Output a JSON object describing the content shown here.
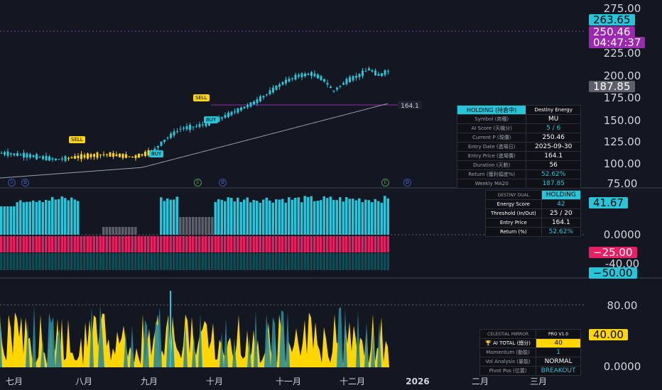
{
  "price_axis": {
    "ticks": [
      "275.00",
      "225.00",
      "200.00",
      "175.00",
      "150.00",
      "125.00",
      "100.00",
      "75.00"
    ]
  },
  "price_tags": {
    "high": "263.65",
    "current": "250.46",
    "countdown": "04:47:37",
    "ma": "187.85",
    "entry_line": "164.1"
  },
  "osc_axis": {
    "ticks": [
      "0.0000",
      "-40.00"
    ]
  },
  "osc_tags": {
    "energy": "41.67",
    "neg25": "−25.00",
    "neg50": "−50.00"
  },
  "bottom_axis": {
    "ticks": [
      "80.00",
      "0.0000"
    ]
  },
  "bottom_tags": {
    "ai": "40.00"
  },
  "x_axis": {
    "labels": [
      "七月",
      "八月",
      "九月",
      "十月",
      "十一月",
      "十二月",
      "2026",
      "二月",
      "三月"
    ]
  },
  "signals": {
    "sell1": "SELL",
    "buy1": "BUY",
    "sell2": "SELL",
    "buy2": "BUY"
  },
  "events": {
    "d": "D",
    "e": "E"
  },
  "holding_table": {
    "status": "HOLDING (持倉中)",
    "title": "Destiny Energy",
    "rows": [
      {
        "k": "Symbol (商種)",
        "v": "MU"
      },
      {
        "k": "AI Score (天機分)",
        "v": "5 / 6"
      },
      {
        "k": "Current P (現價)",
        "v": "250.46"
      },
      {
        "k": "Entry Date (進場日)",
        "v": "2025-09-30"
      },
      {
        "k": "Entry Price (進場價)",
        "v": "164.1"
      },
      {
        "k": "Duration (天數)",
        "v": "56"
      },
      {
        "k": "Return (獲利幅度%)",
        "v": "52.62%"
      },
      {
        "k": "Weekly MA20",
        "v": "187.85"
      }
    ]
  },
  "dual_table": {
    "title": "DESTINY DUAL",
    "status": "HOLDING",
    "rows": [
      {
        "k": "Energy Score",
        "v": "42"
      },
      {
        "k": "Threshold (In/Out)",
        "v": "25 / 20"
      },
      {
        "k": "Entry Price",
        "v": "164.1"
      },
      {
        "k": "Return (%)",
        "v": "52.62%"
      }
    ]
  },
  "mirror_table": {
    "title": "CELESTIAL MIRROR",
    "version": "PRO V1.0",
    "rows": [
      {
        "k": "🏆 AI TOTAL (總分)",
        "v": "40"
      },
      {
        "k": "Momentum (動能)",
        "v": "1"
      },
      {
        "k": "Vol Analysis (量能)",
        "v": "NORMAL"
      },
      {
        "k": "Pivot Pos (位置)",
        "v": "BREAKOUT"
      }
    ]
  },
  "colors": {
    "bg": "#131722",
    "cyan": "#26c6da",
    "magenta": "#e91e63",
    "yellow": "#ffd600",
    "purple": "#9c27b0",
    "teal": "#0e4d55"
  }
}
